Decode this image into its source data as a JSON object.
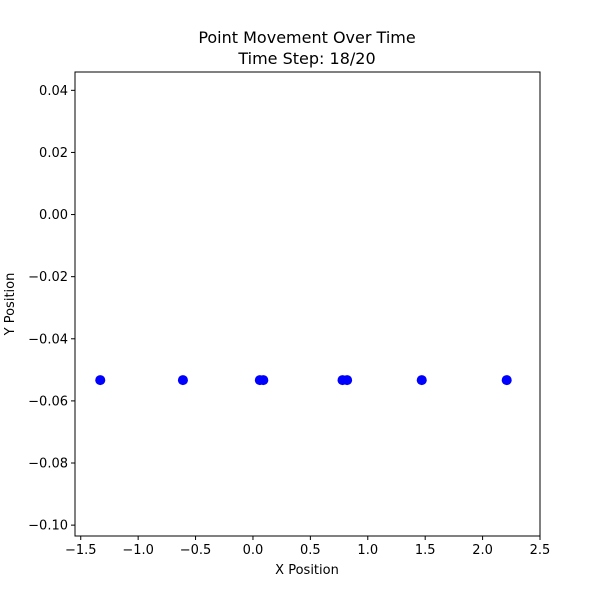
{
  "chart_data": {
    "type": "scatter",
    "title_line1": "Point Movement Over Time",
    "title_line2": "Time Step: 18/20",
    "xlabel": "X Position",
    "ylabel": "Y Position",
    "xlim": [
      -1.55,
      2.5
    ],
    "ylim": [
      -0.1035,
      0.0459
    ],
    "x_ticks": [
      -1.5,
      -1.0,
      -0.5,
      0.0,
      0.5,
      1.0,
      1.5,
      2.0,
      2.5
    ],
    "x_tick_labels": [
      "−1.5",
      "−1.0",
      "−0.5",
      "0.0",
      "0.5",
      "1.0",
      "1.5",
      "2.0",
      "2.5"
    ],
    "y_ticks": [
      0.04,
      0.02,
      0.0,
      -0.02,
      -0.04,
      -0.06,
      -0.08,
      -0.1
    ],
    "y_tick_labels": [
      "0.04",
      "0.02",
      "0.00",
      "−0.02",
      "−0.04",
      "−0.06",
      "−0.08",
      "−0.10"
    ],
    "grid": false,
    "point_color": "#0000ff",
    "points": [
      {
        "x": -1.33,
        "y": -0.0533
      },
      {
        "x": -0.61,
        "y": -0.0533
      },
      {
        "x": 0.06,
        "y": -0.0533
      },
      {
        "x": 0.09,
        "y": -0.0533
      },
      {
        "x": 0.78,
        "y": -0.0533
      },
      {
        "x": 0.82,
        "y": -0.0533
      },
      {
        "x": 1.47,
        "y": -0.0533
      },
      {
        "x": 2.21,
        "y": -0.0533
      }
    ]
  }
}
